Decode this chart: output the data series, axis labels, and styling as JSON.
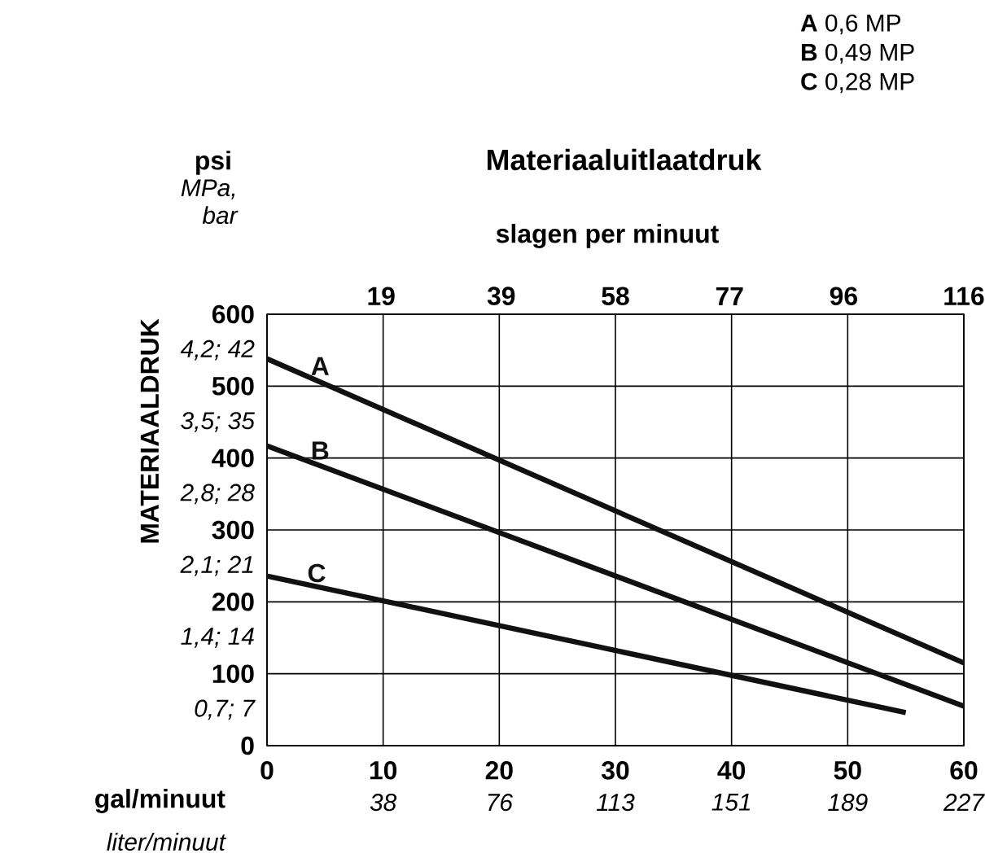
{
  "chart_data": {
    "type": "line",
    "title": "Materiaaluitlaatdruk",
    "xlabel": "gal/minuut",
    "ylabel": "MATERIAALDRUK",
    "x2label": "slagen per minuut",
    "xlim": [
      0,
      60
    ],
    "xticks": [
      0,
      10,
      20,
      30,
      40,
      50,
      60
    ],
    "ylim": [
      0,
      600
    ],
    "yticks": [
      0,
      100,
      200,
      300,
      400,
      500,
      600
    ],
    "x2lim": [
      0,
      116
    ],
    "x2ticks": [
      19,
      39,
      58,
      77,
      96,
      116
    ],
    "grid": true,
    "marker": "none",
    "line_style": "solid",
    "annotations": [
      "psi",
      "MPa, bar",
      "**A** 0,6 MP",
      "**B** 0,49 MP",
      "**C** 0,28 MP",
      "liter/minuut",
      "38",
      "76",
      "113",
      "151",
      "189",
      "227",
      "0,7; 7",
      "1,4; 14",
      "2,1; 21",
      "2,8; 28",
      "3,5; 35",
      "4,2; 42"
    ],
    "series": [
      {
        "name": "A",
        "color": "#111111",
        "x": [
          0,
          60
        ],
        "values": [
          538,
          115
        ]
      },
      {
        "name": "B",
        "color": "#111111",
        "x": [
          0,
          60
        ],
        "values": [
          417,
          55
        ]
      },
      {
        "name": "C",
        "color": "#111111",
        "x": [
          0,
          55
        ],
        "values": [
          236,
          46
        ]
      }
    ]
  }
}
